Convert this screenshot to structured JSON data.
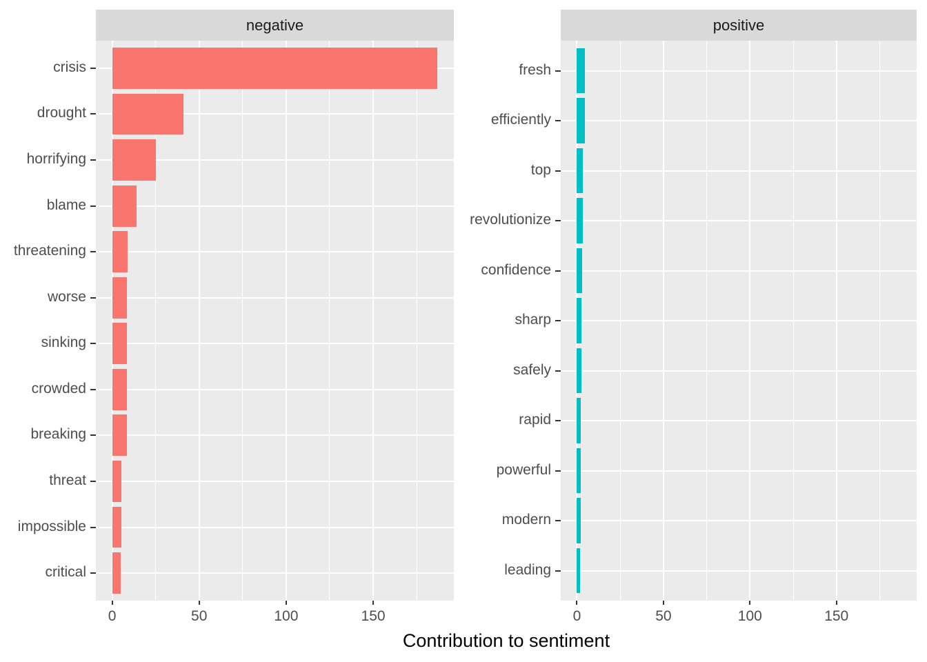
{
  "chart_data": {
    "type": "bar",
    "orientation": "horizontal",
    "title": "",
    "xlabel": "Contribution to sentiment",
    "ylabel": "",
    "x_ticks": [
      0,
      50,
      100,
      150
    ],
    "x_minor_ticks": [
      25,
      75,
      125,
      175
    ],
    "xlim": [
      -9.35,
      196.35
    ],
    "grid": true,
    "legend": "none",
    "colors": {
      "negative_bar": "#F8766D",
      "positive_bar": "#00BFC4",
      "panel_bg": "#EBEBEB",
      "strip_bg": "#D9D9D9",
      "gridline": "#FFFFFF",
      "axis_text": "#4D4D4D",
      "strip_text": "#1A1A1A",
      "axis_title_text": "#000000",
      "tick_mark": "#333333"
    },
    "facets": [
      {
        "label": "negative",
        "series_color": "#F8766D",
        "categories": [
          "crisis",
          "drought",
          "horrifying",
          "blame",
          "threatening",
          "worse",
          "sinking",
          "crowded",
          "breaking",
          "threat",
          "impossible",
          "critical"
        ],
        "values": [
          187,
          41,
          25,
          14,
          9,
          8.5,
          8.5,
          8.5,
          8.5,
          5.3,
          5.2,
          5
        ]
      },
      {
        "label": "positive",
        "series_color": "#00BFC4",
        "categories": [
          "fresh",
          "efficiently",
          "top",
          "revolutionize",
          "confidence",
          "sharp",
          "safely",
          "rapid",
          "powerful",
          "modern",
          "leading"
        ],
        "values": [
          4.6,
          4.5,
          3.3,
          3.3,
          3.2,
          2.5,
          2.5,
          2.4,
          2.1,
          2.1,
          2.0
        ]
      }
    ]
  }
}
